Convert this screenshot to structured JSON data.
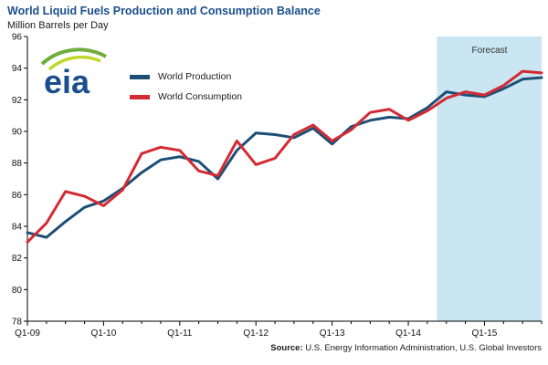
{
  "header": {
    "title": "World Liquid Fuels Production and Consumption Balance",
    "subtitle": "Million Barrels per Day"
  },
  "logo": {
    "text": "eia"
  },
  "forecast": {
    "label": "Forecast",
    "region_color": "#c9e6f2",
    "start": "Q3-14"
  },
  "footer": {
    "source_label": "Source:",
    "source_text": " U.S. Energy Information Administration, U.S. Global Investors"
  },
  "chart_data": {
    "type": "line",
    "title": "World Liquid Fuels Production and Consumption Balance",
    "ylabel": "Million Barrels per Day",
    "xlabel": "",
    "grid": false,
    "legend_position": "top-left",
    "ylim": [
      78,
      96
    ],
    "y_ticks": [
      78,
      80,
      82,
      84,
      86,
      88,
      90,
      92,
      94,
      96
    ],
    "x_labels": [
      "Q1-09",
      "Q2-09",
      "Q3-09",
      "Q4-09",
      "Q1-10",
      "Q2-10",
      "Q3-10",
      "Q4-10",
      "Q1-11",
      "Q2-11",
      "Q3-11",
      "Q4-11",
      "Q1-12",
      "Q2-12",
      "Q3-12",
      "Q4-12",
      "Q1-13",
      "Q2-13",
      "Q3-13",
      "Q4-13",
      "Q1-14",
      "Q2-14",
      "Q3-14",
      "Q4-14",
      "Q1-15",
      "Q2-15",
      "Q3-15",
      "Q4-15"
    ],
    "x_tick_labels": [
      "Q1-09",
      "Q1-10",
      "Q1-11",
      "Q1-12",
      "Q1-13",
      "Q1-14",
      "Q1-15"
    ],
    "forecast_start_label": "Q3-14",
    "series": [
      {
        "name": "World Production",
        "color": "#1d4f76",
        "values": [
          83.6,
          83.3,
          84.3,
          85.2,
          85.6,
          86.4,
          87.4,
          88.2,
          88.4,
          88.1,
          87.0,
          88.8,
          89.9,
          89.8,
          89.6,
          90.2,
          89.2,
          90.3,
          90.7,
          90.9,
          90.8,
          91.5,
          92.5,
          92.3,
          92.2,
          92.7,
          93.3,
          93.4
        ]
      },
      {
        "name": "World Consumption",
        "color": "#d42a33",
        "values": [
          83.0,
          84.2,
          86.2,
          85.9,
          85.3,
          86.3,
          88.6,
          89.0,
          88.8,
          87.5,
          87.2,
          89.4,
          87.9,
          88.3,
          89.8,
          90.4,
          89.4,
          90.1,
          91.2,
          91.4,
          90.7,
          91.3,
          92.1,
          92.5,
          92.3,
          92.9,
          93.8,
          93.7
        ]
      }
    ]
  }
}
